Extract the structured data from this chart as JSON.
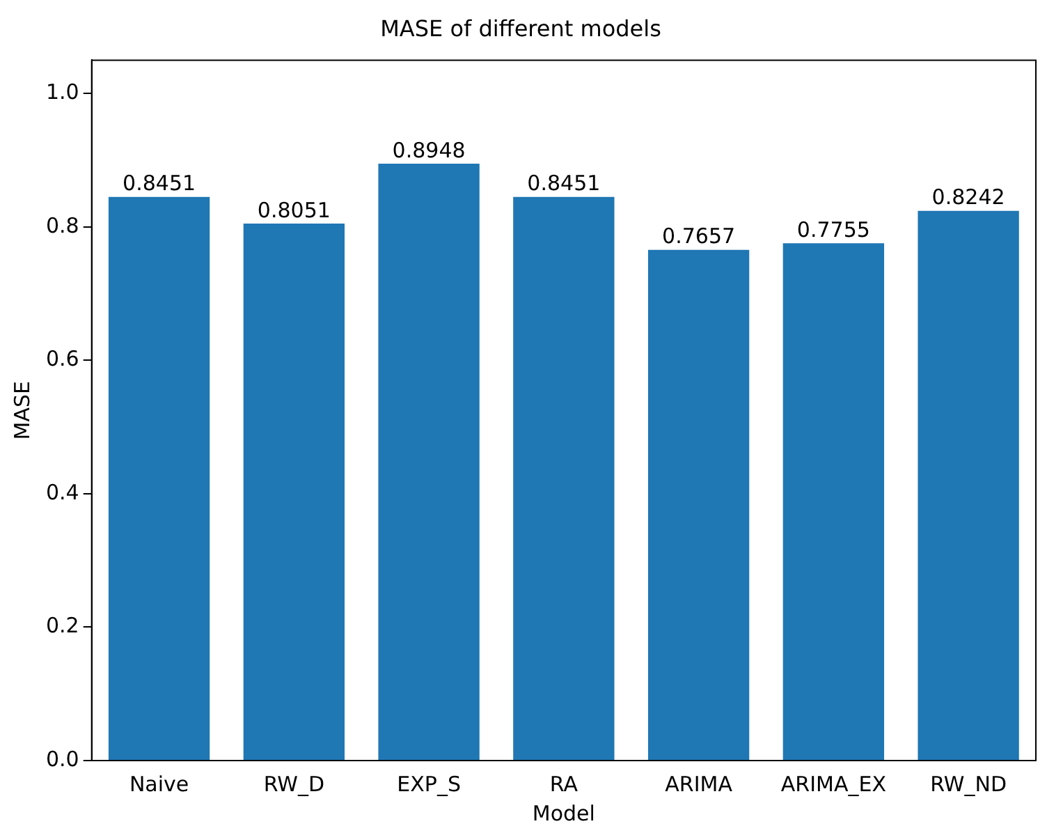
{
  "chart_data": {
    "type": "bar",
    "title": "MASE of different models",
    "xlabel": "Model",
    "ylabel": "MASE",
    "categories": [
      "Naive",
      "RW_D",
      "EXP_S",
      "RA",
      "ARIMA",
      "ARIMA_EX",
      "RW_ND"
    ],
    "values": [
      0.8451,
      0.8051,
      0.8948,
      0.8451,
      0.7657,
      0.7755,
      0.8242
    ],
    "color": "#1f77b4",
    "data_labels": true,
    "ylim": [
      0,
      1.05
    ],
    "yticks": [
      {
        "value": 0,
        "label": "0.0"
      },
      0.2,
      0.4,
      0.6,
      0.8,
      {
        "value": 1,
        "label": "1.0"
      }
    ],
    "grid": false,
    "legend": false
  }
}
